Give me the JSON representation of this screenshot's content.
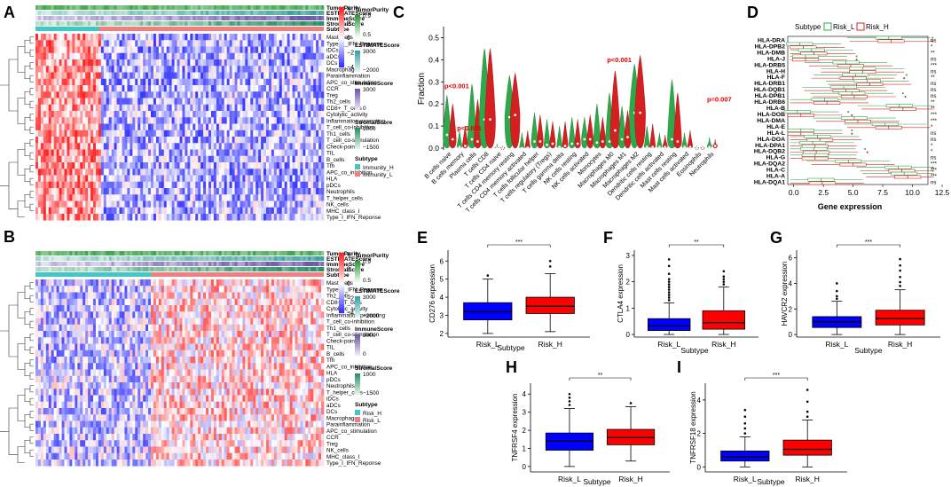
{
  "panel_letters": [
    "A",
    "B",
    "C",
    "D",
    "E",
    "F",
    "G",
    "H",
    "I"
  ],
  "heatmap_A": {
    "annotations": [
      "TumorPurity",
      "ESTIMATEScore",
      "ImmuneScore",
      "StromalScore",
      "Subtype"
    ],
    "rows": [
      "Mast_cells",
      "Type_II_IFN_Reponse",
      "iDCs",
      "aDCs",
      "DCs",
      "Macrophages",
      "Parainflammation",
      "APC_co_stimulation",
      "CCR",
      "Treg",
      "Th2_cells",
      "CD8+_T_cells",
      "Cytolytic_activity",
      "Inflammation-promoting",
      "T_cell_co-inhibition",
      "Th1_cells",
      "T_cell_co-stimulation",
      "Check-point",
      "TIL",
      "B_cells",
      "Tfh",
      "APC_co_inhibition",
      "HLA",
      "pDCs",
      "Neutrophils",
      "T_helper_cells",
      "NK_cells",
      "MHC_class_I",
      "Type_I_IFN_Reponse"
    ],
    "scale_ticks": [
      "4",
      "2",
      "0",
      "−2",
      "−4"
    ],
    "legend": {
      "tumor_title": "TumorPurity",
      "tumor_ticks": [
        "0.9",
        "0.5"
      ],
      "estimate_title": "ESTIMATEScore",
      "estimate_ticks": [
        "3000",
        "−2000"
      ],
      "immune_title": "ImmuneScore",
      "immune_ticks": [
        "3000",
        "0"
      ],
      "stromal_title": "StromalScore",
      "stromal_ticks": [
        "1000",
        "−1500"
      ],
      "subtype_title": "Subtype",
      "subtype_items": [
        "Immunity_H",
        "Immunity_L"
      ]
    }
  },
  "heatmap_B": {
    "annotations": [
      "TumorPurity",
      "ESTIMATEScore",
      "ImmuneScore",
      "StromalScore",
      "Subtype"
    ],
    "rows": [
      "Mast_cells",
      "Type_II_IFN_Reponse",
      "Th2_cells",
      "CD8+_T_cells",
      "Cytolytic_activity",
      "Inflammation-promoting",
      "T_cell_co-inhibition",
      "Th1_cells",
      "T_cell_co-stimulation",
      "Check-point",
      "TIL",
      "B_cells",
      "Tfh",
      "APC_co_inhibition",
      "HLA",
      "pDCs",
      "Neutrophils",
      "T_helper_cells",
      "iDCs",
      "aDCs",
      "DCs",
      "Macrophages",
      "Parainflammation",
      "APC_co_stimulation",
      "CCR",
      "Treg",
      "NK_cells",
      "MHC_class_I",
      "Type_I_IFN_Reponse"
    ],
    "scale_ticks": [
      "4",
      "2",
      "0",
      "−2",
      "−4"
    ],
    "legend": {
      "tumor_title": "TumorPurity",
      "tumor_ticks": [
        "0.9",
        "0.5"
      ],
      "estimate_title": "ESTIMATEScore",
      "estimate_ticks": [
        "3000",
        "−2000"
      ],
      "immune_title": "ImmuneScore",
      "immune_ticks": [
        "3000",
        "0"
      ],
      "stromal_title": "StromalScore",
      "stromal_ticks": [
        "1000",
        "−1500"
      ],
      "subtype_title": "Subtype",
      "subtype_items": [
        "Risk_H",
        "Risk_L"
      ]
    }
  },
  "colors": {
    "red": "#ff0000",
    "blue": "#0000ff",
    "green": "#3cb371",
    "orange": "#f4a582",
    "cyan": "#40c8c8",
    "salmon": "#f08080",
    "purple": "#7b5ea7",
    "teal": "#2e8b8b"
  },
  "chart_data": [
    {
      "panel": "C",
      "type": "violin",
      "ylabel": "Fraction",
      "ylim": [
        0,
        0.55
      ],
      "yticks": [
        "0.0",
        "0.1",
        "0.2",
        "0.3",
        "0.4",
        "0.5"
      ],
      "categories": [
        "B cells naive",
        "B cells memory",
        "Plasma cells",
        "T cells CD8",
        "T cells CD4 naive",
        "T cells CD4 memory resting",
        "T cells CD4 memory activated",
        "T cells follicular helper",
        "T cells regulatory (Tregs)",
        "T cells gamma delta",
        "NK cells resting",
        "NK cells activated",
        "Monocytes",
        "Macrophages M0",
        "Macrophages M1",
        "Macrophages M2",
        "Dendritic cells resting",
        "Dendritic cells activated",
        "Mast cells resting",
        "Mast cells activated",
        "Eosinophils",
        "Neutrophils"
      ],
      "series": [
        {
          "name": "Risk_L",
          "medians": [
            0.06,
            0.005,
            0.04,
            0.13,
            0.0,
            0.14,
            0.0,
            0.03,
            0.015,
            0.005,
            0.02,
            0.04,
            0.025,
            0.03,
            0.04,
            0.16,
            0.005,
            0.005,
            0.04,
            0.005,
            0.0,
            0.005
          ],
          "maxima": [
            0.24,
            0.08,
            0.29,
            0.45,
            0.02,
            0.33,
            0.07,
            0.16,
            0.13,
            0.1,
            0.14,
            0.14,
            0.2,
            0.25,
            0.19,
            0.38,
            0.1,
            0.07,
            0.31,
            0.07,
            0.01,
            0.05
          ]
        },
        {
          "name": "Risk_H",
          "medians": [
            0.04,
            0.01,
            0.03,
            0.13,
            0.0,
            0.15,
            0.002,
            0.03,
            0.02,
            0.01,
            0.02,
            0.04,
            0.03,
            0.08,
            0.05,
            0.16,
            0.005,
            0.005,
            0.03,
            0.005,
            0.0,
            0.01
          ],
          "maxima": [
            0.2,
            0.1,
            0.22,
            0.45,
            0.01,
            0.34,
            0.08,
            0.15,
            0.12,
            0.12,
            0.13,
            0.15,
            0.14,
            0.35,
            0.17,
            0.42,
            0.11,
            0.06,
            0.25,
            0.08,
            0.01,
            0.04
          ]
        }
      ],
      "annotations": [
        {
          "text": "p<0.001",
          "category": "B cells naive",
          "y": 0.27
        },
        {
          "text": "p<0.001",
          "category": "B cells memory",
          "y": 0.08
        },
        {
          "text": "p<0.001",
          "category": "Macrophages M0",
          "y": 0.39
        },
        {
          "text": "p=0.007",
          "category": "Neutrophils",
          "y": 0.21
        }
      ]
    },
    {
      "panel": "D",
      "type": "boxplot_horizontal",
      "legend_title": "Subtype",
      "legend": [
        "Risk_L",
        "Risk_H"
      ],
      "xlabel": "Gene expression",
      "xlim": [
        -0.5,
        12.5
      ],
      "xticks": [
        "0.0",
        "2.5",
        "5.0",
        "7.5",
        "10.0",
        "12.5"
      ],
      "categories": [
        "HLA-DRA",
        "HLA-DPB2",
        "HLA-DMB",
        "HLA-J",
        "HLA-DRB5",
        "HLA-H",
        "HLA-F",
        "HLA-DRB1",
        "HLA-DQB1",
        "HLA-DPB1",
        "HLA-DRB6",
        "HLA-B",
        "HLA-DOB",
        "HLA-DMA",
        "HLA-E",
        "HLA-L",
        "HLA-DOA",
        "HLA-DPA1",
        "HLA-DQB2",
        "HLA-G",
        "HLA-DQA2",
        "HLA-C",
        "HLA-A",
        "HLA-DQA1"
      ],
      "significance": [
        "ns",
        "*",
        "**",
        "ns",
        "***",
        "ns",
        "**",
        "ns",
        "ns",
        "ns",
        "**",
        "**",
        "***",
        "***",
        "*",
        "ns",
        "ns",
        "*",
        "*",
        "ns",
        "***",
        "***",
        "***",
        "ns"
      ],
      "series": [
        {
          "name": "Risk_L",
          "medians": [
            8.0,
            0.5,
            1.5,
            1.0,
            4.4,
            5.8,
            5.2,
            6.2,
            4.2,
            4.9,
            2.6,
            8.9,
            0.3,
            5.1,
            7.7,
            0.6,
            2.0,
            1.6,
            1.7,
            1.8,
            4.6,
            8.8,
            9.3,
            2.3
          ]
        },
        {
          "name": "Risk_H",
          "medians": [
            8.2,
            0.8,
            1.7,
            1.0,
            4.8,
            5.8,
            5.0,
            6.4,
            4.4,
            5.1,
            2.8,
            9.2,
            0.6,
            5.4,
            8.0,
            0.6,
            2.2,
            1.8,
            1.9,
            1.8,
            5.0,
            9.1,
            9.6,
            2.4
          ]
        }
      ]
    },
    {
      "panel": "E",
      "type": "boxplot",
      "ylabel": "CD276 expression",
      "xlabel": "Subtype",
      "categories": [
        "Risk_L",
        "Risk_H"
      ],
      "ylim": [
        1.8,
        6.6
      ],
      "yticks": [
        "2",
        "3",
        "4",
        "5",
        "6"
      ],
      "significance": "***",
      "series": [
        {
          "name": "Risk_L",
          "min": 2.0,
          "q1": 2.75,
          "median": 3.2,
          "q3": 3.7,
          "max": 5.0,
          "outliers": [
            5.2
          ]
        },
        {
          "name": "Risk_H",
          "min": 2.1,
          "q1": 3.1,
          "median": 3.5,
          "q3": 4.0,
          "max": 5.3,
          "outliers": [
            5.7,
            6.0
          ]
        }
      ]
    },
    {
      "panel": "F",
      "type": "boxplot",
      "ylabel": "CTLA4 expression",
      "xlabel": "Subtype",
      "categories": [
        "Risk_L",
        "Risk_H"
      ],
      "ylim": [
        -0.1,
        3.2
      ],
      "yticks": [
        "0",
        "1",
        "2",
        "3"
      ],
      "significance": "**",
      "series": [
        {
          "name": "Risk_L",
          "min": 0.0,
          "q1": 0.15,
          "median": 0.32,
          "q3": 0.6,
          "max": 1.2,
          "outliers": [
            1.3,
            1.4,
            1.5,
            1.6,
            1.7,
            1.8,
            1.9,
            2.0,
            2.1,
            2.3,
            2.6,
            2.85
          ]
        },
        {
          "name": "Risk_H",
          "min": 0.0,
          "q1": 0.2,
          "median": 0.45,
          "q3": 0.9,
          "max": 1.8,
          "outliers": [
            1.9,
            2.0,
            2.1,
            2.2,
            2.4
          ]
        }
      ]
    },
    {
      "panel": "G",
      "type": "boxplot",
      "ylabel": "HAVCR2 expression",
      "xlabel": "Subtype",
      "categories": [
        "Risk_L",
        "Risk_H"
      ],
      "ylim": [
        -0.2,
        6.6
      ],
      "yticks": [
        "0",
        "2",
        "4",
        "6"
      ],
      "significance": "***",
      "series": [
        {
          "name": "Risk_L",
          "min": 0.0,
          "q1": 0.55,
          "median": 1.0,
          "q3": 1.4,
          "max": 2.6,
          "outliers": [
            2.8,
            3.0,
            3.4,
            4.0
          ]
        },
        {
          "name": "Risk_H",
          "min": 0.0,
          "q1": 0.75,
          "median": 1.25,
          "q3": 1.9,
          "max": 3.5,
          "outliers": [
            3.8,
            4.1,
            4.5,
            5.0,
            5.4,
            5.9
          ]
        }
      ]
    },
    {
      "panel": "H",
      "type": "boxplot",
      "ylabel": "TNFRSF4 expression",
      "xlabel": "Subtype",
      "categories": [
        "Risk_L",
        "Risk_H"
      ],
      "ylim": [
        -0.3,
        4.6
      ],
      "yticks": [
        "0",
        "1",
        "2",
        "3",
        "4"
      ],
      "significance": "**",
      "series": [
        {
          "name": "Risk_L",
          "min": 0.0,
          "q1": 0.9,
          "median": 1.4,
          "q3": 1.85,
          "max": 3.2,
          "outliers": [
            3.4,
            3.6,
            3.8,
            4.0
          ]
        },
        {
          "name": "Risk_H",
          "min": 0.3,
          "q1": 1.2,
          "median": 1.6,
          "q3": 2.05,
          "max": 3.3,
          "outliers": [
            3.5
          ]
        }
      ]
    },
    {
      "panel": "I",
      "type": "boxplot",
      "ylabel": "TNFRSF18 expression",
      "xlabel": "Subtype",
      "categories": [
        "Risk_L",
        "Risk_H"
      ],
      "ylim": [
        -0.3,
        5.0
      ],
      "yticks": [
        "0",
        "2",
        "4"
      ],
      "significance": "***",
      "series": [
        {
          "name": "Risk_L",
          "min": 0.0,
          "q1": 0.35,
          "median": 0.6,
          "q3": 0.95,
          "max": 1.8,
          "outliers": [
            2.0,
            2.3,
            2.6,
            3.0,
            3.4
          ]
        },
        {
          "name": "Risk_H",
          "min": 0.0,
          "q1": 0.7,
          "median": 1.05,
          "q3": 1.6,
          "max": 2.8,
          "outliers": [
            3.0,
            3.3,
            3.9,
            4.6
          ]
        }
      ]
    }
  ]
}
